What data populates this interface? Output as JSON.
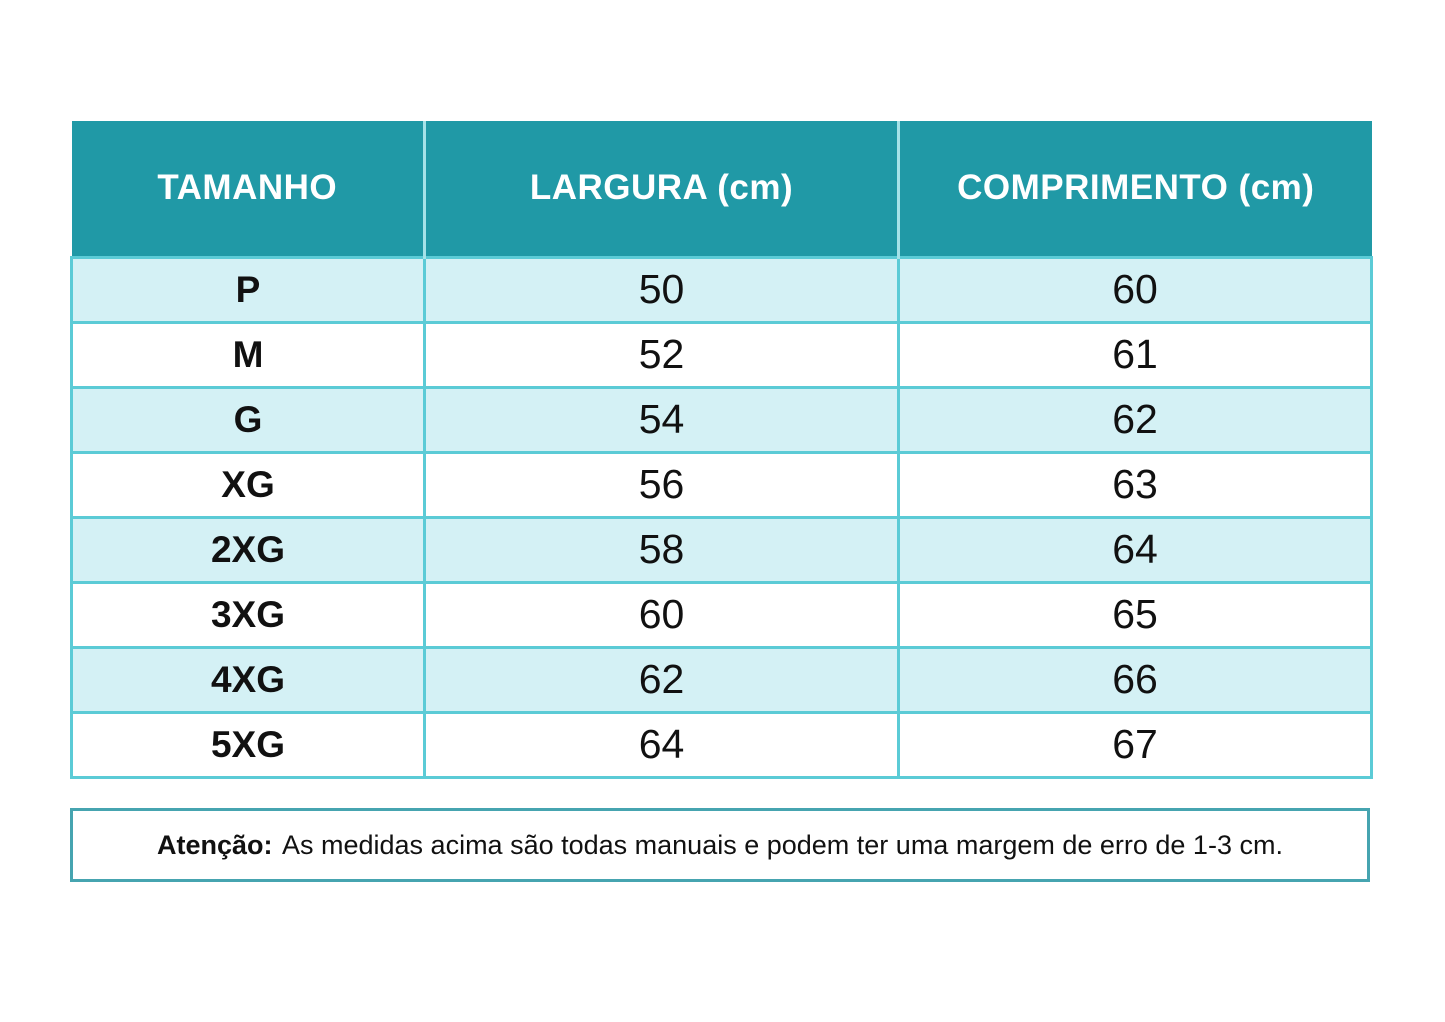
{
  "size_chart": {
    "headers": [
      "TAMANHO",
      "LARGURA (cm)",
      "COMPRIMENTO (cm)"
    ],
    "rows": [
      {
        "tamanho": "P",
        "largura": "50",
        "comprimento": "60"
      },
      {
        "tamanho": "M",
        "largura": "52",
        "comprimento": "61"
      },
      {
        "tamanho": "G",
        "largura": "54",
        "comprimento": "62"
      },
      {
        "tamanho": "XG",
        "largura": "56",
        "comprimento": "63"
      },
      {
        "tamanho": "2XG",
        "largura": "58",
        "comprimento": "64"
      },
      {
        "tamanho": "3XG",
        "largura": "60",
        "comprimento": "65"
      },
      {
        "tamanho": "4XG",
        "largura": "62",
        "comprimento": "66"
      },
      {
        "tamanho": "5XG",
        "largura": "64",
        "comprimento": "67"
      }
    ]
  },
  "note": {
    "label": "Atenção:",
    "text": "As medidas acima são todas manuais e podem ter uma margem de erro de 1-3 cm."
  },
  "colors": {
    "header_bg": "#2099A6",
    "header_text": "#FFFFFF",
    "row_alt_bg": "#D4F1F5",
    "grid_line": "#5BCBD6",
    "note_border": "#46A4B0",
    "text": "#111111"
  },
  "chart_data": {
    "type": "table",
    "title": "Tabela de medidas (size chart)",
    "columns": [
      "TAMANHO",
      "LARGURA (cm)",
      "COMPRIMENTO (cm)"
    ],
    "rows": [
      [
        "P",
        50,
        60
      ],
      [
        "M",
        52,
        61
      ],
      [
        "G",
        54,
        62
      ],
      [
        "XG",
        56,
        63
      ],
      [
        "2XG",
        58,
        64
      ],
      [
        "3XG",
        60,
        65
      ],
      [
        "4XG",
        62,
        66
      ],
      [
        "5XG",
        64,
        67
      ]
    ],
    "note": "Atenção: As medidas acima são todas manuais e podem ter uma margem de erro de 1-3 cm."
  }
}
